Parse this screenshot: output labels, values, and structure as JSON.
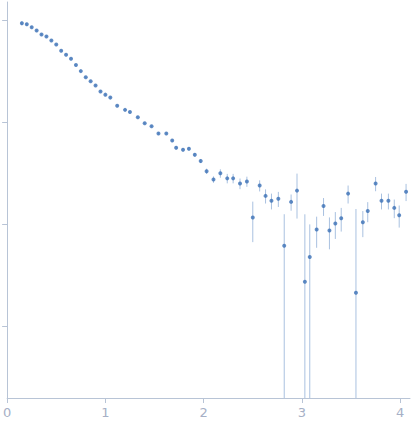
{
  "chart_data": {
    "type": "scatter",
    "log": "y",
    "grid": false,
    "tick_labels": "x",
    "color": "#3a6fb5",
    "marker": "circle",
    "x": [
      0.15,
      0.2,
      0.25,
      0.3,
      0.35,
      0.4,
      0.45,
      0.5,
      0.55,
      0.6,
      0.65,
      0.7,
      0.75,
      0.8,
      0.85,
      0.9,
      0.95,
      1.0,
      1.05,
      1.12,
      1.2,
      1.25,
      1.33,
      1.4,
      1.47,
      1.54,
      1.62,
      1.68,
      1.72,
      1.79,
      1.85,
      1.91,
      1.97,
      2.03,
      2.1,
      2.17,
      2.24,
      2.3,
      2.37,
      2.44,
      2.5,
      2.57,
      2.63,
      2.69,
      2.76,
      2.82,
      2.89,
      2.95,
      3.03,
      3.08,
      3.15,
      3.22,
      3.28,
      3.34,
      3.4,
      3.47,
      3.55,
      3.62,
      3.67,
      3.75,
      3.81,
      3.88,
      3.94,
      3.99,
      4.06
    ],
    "values": [
      0.93,
      0.91,
      0.85,
      0.79,
      0.72,
      0.69,
      0.63,
      0.575,
      0.5,
      0.457,
      0.417,
      0.363,
      0.316,
      0.275,
      0.251,
      0.229,
      0.2,
      0.186,
      0.174,
      0.145,
      0.132,
      0.126,
      0.112,
      0.0977,
      0.0912,
      0.0776,
      0.0776,
      0.0661,
      0.0562,
      0.0537,
      0.055,
      0.0479,
      0.0417,
      0.0331,
      0.0275,
      0.0316,
      0.0282,
      0.0282,
      0.0251,
      0.0263,
      0.0117,
      0.024,
      0.019,
      0.017,
      0.0178,
      0.00617,
      0.0166,
      0.0214,
      0.00275,
      0.0048,
      0.0089,
      0.0151,
      0.0087,
      0.0102,
      0.0115,
      0.02,
      0.00214,
      0.0105,
      0.0135,
      0.0251,
      0.017,
      0.017,
      0.0145,
      0.0123,
      0.0209
    ],
    "errors": [
      0.04,
      0.03,
      0.02,
      0.02,
      0.015,
      0.015,
      0.012,
      0.01,
      0.01,
      0.009,
      0.008,
      0.007,
      0.006,
      0.005,
      0.005,
      0.004,
      0.004,
      0.004,
      0.004,
      0.003,
      0.003,
      0.003,
      0.003,
      0.002,
      0.002,
      0.002,
      0.002,
      0.002,
      0.002,
      0.002,
      0.002,
      0.002,
      0.002,
      0.002,
      0.002,
      0.003,
      0.003,
      0.003,
      0.003,
      0.003,
      0.005,
      0.003,
      0.003,
      0.003,
      0.003,
      0.0064,
      0.003,
      0.01,
      0.0098,
      0.0052,
      0.003,
      0.003,
      0.003,
      0.003,
      0.003,
      0.004,
      0.012,
      0.003,
      0.003,
      0.004,
      0.003,
      0.003,
      0.003,
      0.003,
      0.004
    ],
    "error_color": "#a9c1e0",
    "xlim": [
      0,
      4.1
    ],
    "xticks": [
      0,
      1,
      2,
      3,
      4
    ],
    "ylim": [
      0.0002,
      1.5
    ],
    "yticks": [
      0.001,
      0.01,
      0.1,
      1
    ]
  }
}
